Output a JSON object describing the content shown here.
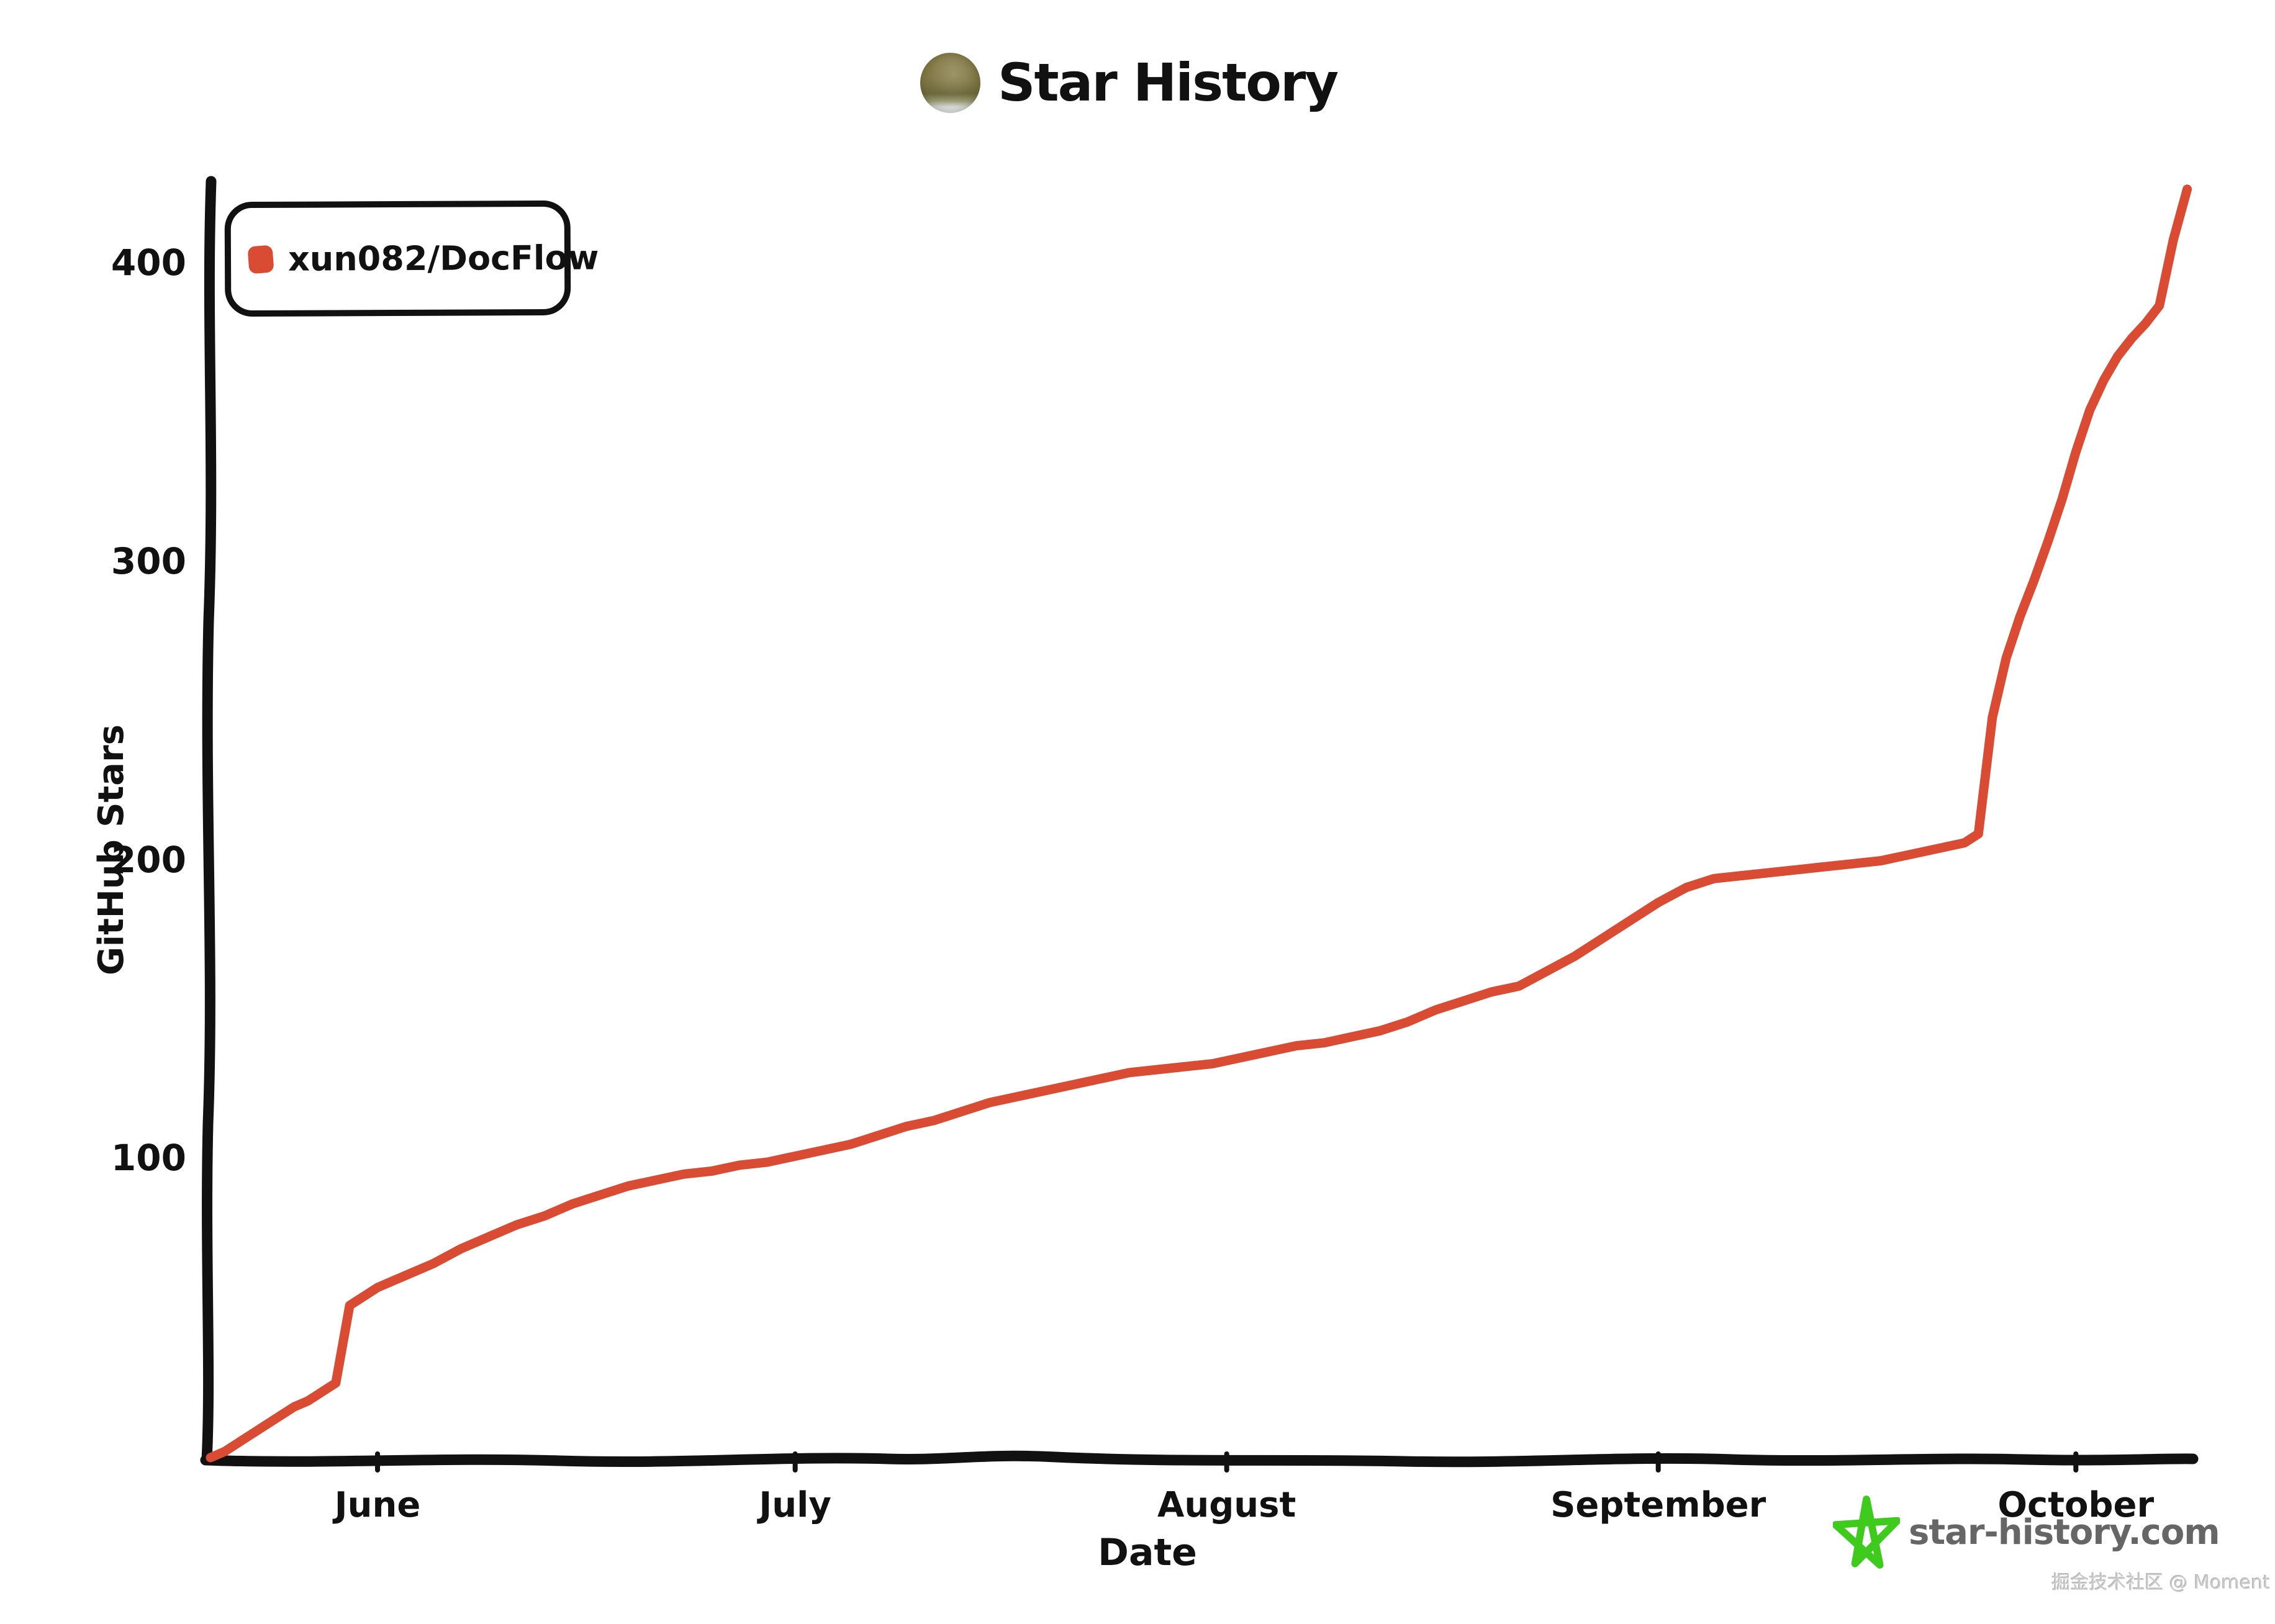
{
  "footer": {
    "logo_text": "star-history.com",
    "watermark": "掘金技术社区 @ Moment"
  },
  "colors": {
    "series": "#d94b32",
    "axis": "#111111",
    "logo_green": "#3ecb1e",
    "logo_text_gray": "#666666",
    "watermark_gray": "#c9c9c9"
  },
  "icons": {
    "repo_avatar": "circular-olive-avatar",
    "logo_star": "green-doodle-star"
  },
  "chart_data": {
    "type": "line",
    "title": "Star History",
    "xlabel": "Date",
    "ylabel": "GitHub Stars",
    "y_ticks": [
      100,
      200,
      300,
      400
    ],
    "x_tick_labels": [
      "June",
      "July",
      "August",
      "September",
      "October"
    ],
    "ylim": [
      0,
      430
    ],
    "x_range": [
      "May 20",
      "Oct 9"
    ],
    "grid": false,
    "legend_position": "top-left",
    "series": [
      {
        "name": "xun082/DocFlow",
        "color": "#d94b32",
        "points": [
          [
            "May 20",
            0
          ],
          [
            "May 21",
            2
          ],
          [
            "May 22",
            5
          ],
          [
            "May 23",
            8
          ],
          [
            "May 24",
            11
          ],
          [
            "May 25",
            14
          ],
          [
            "May 26",
            17
          ],
          [
            "May 27",
            19
          ],
          [
            "May 28",
            22
          ],
          [
            "May 29",
            25
          ],
          [
            "May 30",
            51
          ],
          [
            "May 31",
            54
          ],
          [
            "Jun 1",
            57
          ],
          [
            "Jun 3",
            61
          ],
          [
            "Jun 5",
            65
          ],
          [
            "Jun 7",
            70
          ],
          [
            "Jun 9",
            74
          ],
          [
            "Jun 11",
            78
          ],
          [
            "Jun 13",
            81
          ],
          [
            "Jun 15",
            85
          ],
          [
            "Jun 17",
            88
          ],
          [
            "Jun 19",
            91
          ],
          [
            "Jun 21",
            93
          ],
          [
            "Jun 23",
            95
          ],
          [
            "Jun 25",
            96
          ],
          [
            "Jun 27",
            98
          ],
          [
            "Jun 29",
            99
          ],
          [
            "Jul 1",
            101
          ],
          [
            "Jul 3",
            103
          ],
          [
            "Jul 5",
            105
          ],
          [
            "Jul 7",
            108
          ],
          [
            "Jul 9",
            111
          ],
          [
            "Jul 11",
            113
          ],
          [
            "Jul 13",
            116
          ],
          [
            "Jul 15",
            119
          ],
          [
            "Jul 17",
            121
          ],
          [
            "Jul 19",
            123
          ],
          [
            "Jul 21",
            125
          ],
          [
            "Jul 23",
            127
          ],
          [
            "Jul 25",
            129
          ],
          [
            "Jul 27",
            130
          ],
          [
            "Jul 29",
            131
          ],
          [
            "Jul 31",
            132
          ],
          [
            "Aug 2",
            134
          ],
          [
            "Aug 4",
            136
          ],
          [
            "Aug 6",
            138
          ],
          [
            "Aug 8",
            139
          ],
          [
            "Aug 10",
            141
          ],
          [
            "Aug 12",
            143
          ],
          [
            "Aug 14",
            146
          ],
          [
            "Aug 16",
            150
          ],
          [
            "Aug 18",
            153
          ],
          [
            "Aug 20",
            156
          ],
          [
            "Aug 22",
            158
          ],
          [
            "Aug 24",
            163
          ],
          [
            "Aug 26",
            168
          ],
          [
            "Aug 28",
            174
          ],
          [
            "Aug 30",
            180
          ],
          [
            "Sep 1",
            186
          ],
          [
            "Sep 3",
            191
          ],
          [
            "Sep 5",
            194
          ],
          [
            "Sep 7",
            195
          ],
          [
            "Sep 9",
            196
          ],
          [
            "Sep 11",
            197
          ],
          [
            "Sep 13",
            198
          ],
          [
            "Sep 15",
            199
          ],
          [
            "Sep 17",
            200
          ],
          [
            "Sep 19",
            202
          ],
          [
            "Sep 21",
            204
          ],
          [
            "Sep 23",
            206
          ],
          [
            "Sep 24",
            209
          ],
          [
            "Sep 25",
            248
          ],
          [
            "Sep 26",
            268
          ],
          [
            "Sep 27",
            282
          ],
          [
            "Sep 28",
            294
          ],
          [
            "Sep 29",
            307
          ],
          [
            "Sep 30",
            321
          ],
          [
            "Oct 1",
            337
          ],
          [
            "Oct 2",
            351
          ],
          [
            "Oct 3",
            361
          ],
          [
            "Oct 4",
            369
          ],
          [
            "Oct 5",
            375
          ],
          [
            "Oct 6",
            380
          ],
          [
            "Oct 7",
            386
          ],
          [
            "Oct 8",
            408
          ],
          [
            "Oct 9",
            425
          ]
        ]
      }
    ]
  }
}
